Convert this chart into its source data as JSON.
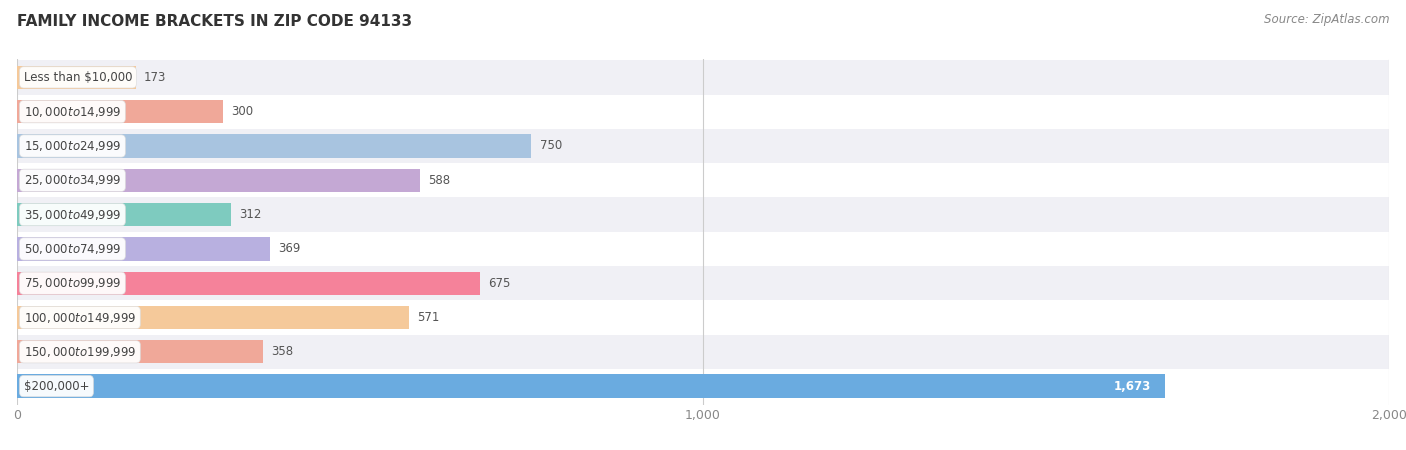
{
  "title": "FAMILY INCOME BRACKETS IN ZIP CODE 94133",
  "source": "Source: ZipAtlas.com",
  "categories": [
    "Less than $10,000",
    "$10,000 to $14,999",
    "$15,000 to $24,999",
    "$25,000 to $34,999",
    "$35,000 to $49,999",
    "$50,000 to $74,999",
    "$75,000 to $99,999",
    "$100,000 to $149,999",
    "$150,000 to $199,999",
    "$200,000+"
  ],
  "values": [
    173,
    300,
    750,
    588,
    312,
    369,
    675,
    571,
    358,
    1673
  ],
  "colors": [
    "#f5c99a",
    "#f0a899",
    "#a8c4e0",
    "#c4a8d4",
    "#7ecbbf",
    "#b8b0e0",
    "#f5829a",
    "#f5c99a",
    "#f0a899",
    "#6aabe0"
  ],
  "xlim": [
    0,
    2000
  ],
  "xticks": [
    0,
    1000,
    2000
  ],
  "xticklabels": [
    "0",
    "1,000",
    "2,000"
  ],
  "title_fontsize": 11,
  "source_fontsize": 8.5,
  "bar_height": 0.68,
  "background_color": "#ffffff",
  "row_bg_even": "#f0f0f5",
  "row_bg_odd": "#ffffff",
  "label_fontsize": 8.5,
  "value_fontsize": 8.5,
  "grid_color": "#cccccc"
}
